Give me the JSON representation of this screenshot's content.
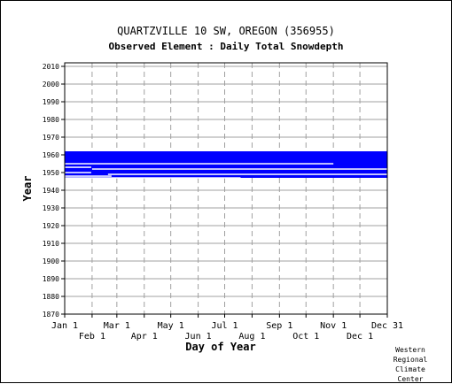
{
  "chart_data": {
    "type": "timeline",
    "title": "QUARTZVILLE 10 SW, OREGON   (356955)",
    "subtitle": "Observed Element : Daily Total Snowdepth",
    "xlabel": "Day of Year",
    "ylabel": "Year",
    "ylim": [
      1870,
      2012
    ],
    "yticks": [
      1870,
      1880,
      1890,
      1900,
      1910,
      1920,
      1930,
      1940,
      1950,
      1960,
      1970,
      1980,
      1990,
      2000,
      2010
    ],
    "xlim": [
      1,
      366
    ],
    "xticks_upper": [
      {
        "label": "Jan 1",
        "day": 1
      },
      {
        "label": "Mar 1",
        "day": 60
      },
      {
        "label": "May 1",
        "day": 121
      },
      {
        "label": "Jul 1",
        "day": 182
      },
      {
        "label": "Sep 1",
        "day": 244
      },
      {
        "label": "Nov 1",
        "day": 305
      },
      {
        "label": "Dec 31",
        "day": 366
      }
    ],
    "xticks_lower": [
      {
        "label": "Feb 1",
        "day": 32
      },
      {
        "label": "Apr 1",
        "day": 91
      },
      {
        "label": "Jun 1",
        "day": 152
      },
      {
        "label": "Aug 1",
        "day": 213
      },
      {
        "label": "Oct 1",
        "day": 274
      },
      {
        "label": "Dec 1",
        "day": 335
      }
    ],
    "grid": true,
    "series_color": "#0000ff",
    "data_band": {
      "start_year": 1947,
      "end_year": 1962,
      "start_day": 1,
      "end_day": 366
    },
    "gaps": [
      {
        "year": 1955,
        "start_day": 1,
        "end_day": 305
      },
      {
        "year": 1953,
        "start_day": 1,
        "end_day": 31
      },
      {
        "year": 1952,
        "start_day": 32,
        "end_day": 366
      },
      {
        "year": 1950,
        "start_day": 1,
        "end_day": 31
      },
      {
        "year": 1949,
        "start_day": 50,
        "end_day": 366
      },
      {
        "year": 1948,
        "start_day": 1,
        "end_day": 54
      },
      {
        "year": 1947,
        "start_day": 1,
        "end_day": 200
      }
    ]
  },
  "credit": [
    "Western",
    "Regional",
    "Climate",
    "Center"
  ]
}
